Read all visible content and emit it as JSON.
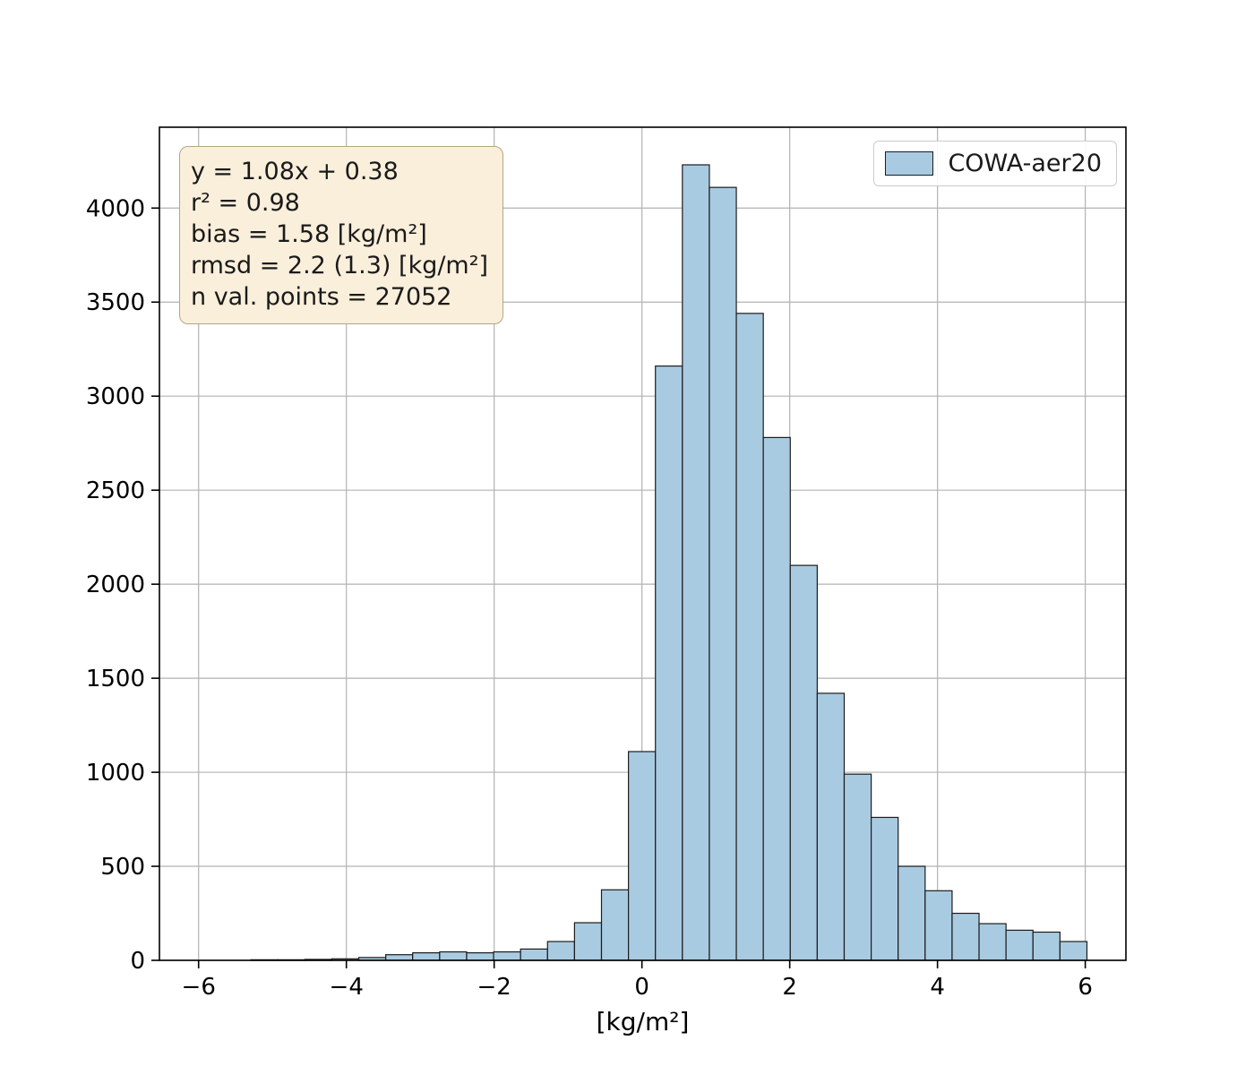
{
  "figure": {
    "annotation": {
      "lines": [
        "y = 1.08x + 0.38",
        "r² = 0.98",
        "bias = 1.58 [kg/m²]",
        "rmsd = 2.2 (1.3) [kg/m²]",
        "n val. points = 27052"
      ]
    },
    "legend": {
      "label": "COWA-aer20"
    }
  },
  "chart_data": {
    "type": "bar",
    "subtype": "histogram",
    "title": "",
    "xlabel": "[kg/m²]",
    "ylabel": "",
    "legend_position": "upper right",
    "grid": true,
    "xlim": [
      -6.53,
      6.55
    ],
    "ylim": [
      0,
      4430
    ],
    "xticks": [
      -6,
      -4,
      -2,
      0,
      2,
      4,
      6
    ],
    "yticks": [
      0,
      500,
      1000,
      1500,
      2000,
      2500,
      3000,
      3500,
      4000
    ],
    "bin_width": 0.365,
    "x": [
      -5.11,
      -4.745,
      -4.38,
      -4.015,
      -3.65,
      -3.285,
      -2.92,
      -2.555,
      -2.19,
      -1.825,
      -1.46,
      -1.095,
      -0.73,
      -0.365,
      0,
      0.365,
      0.73,
      1.095,
      1.46,
      1.825,
      2.19,
      2.555,
      2.92,
      3.285,
      3.65,
      4.015,
      4.38,
      4.745,
      5.11,
      5.475,
      5.84
    ],
    "values": [
      3,
      3,
      5,
      8,
      15,
      30,
      40,
      45,
      40,
      45,
      60,
      100,
      200,
      375,
      1110,
      3160,
      4230,
      4110,
      3440,
      2780,
      2100,
      1420,
      990,
      760,
      500,
      370,
      250,
      195,
      160,
      150,
      100
    ],
    "colors": {
      "bar_fill": "#a9cbe2",
      "bar_edge": "#1c1c1c",
      "grid": "#b2b2b2",
      "spine": "#000000",
      "tick": "#000000",
      "tick_label": "#000000",
      "annotation_bg": "#faefdb",
      "annotation_border": "#b3a685",
      "legend_border": "#cccccc"
    }
  }
}
